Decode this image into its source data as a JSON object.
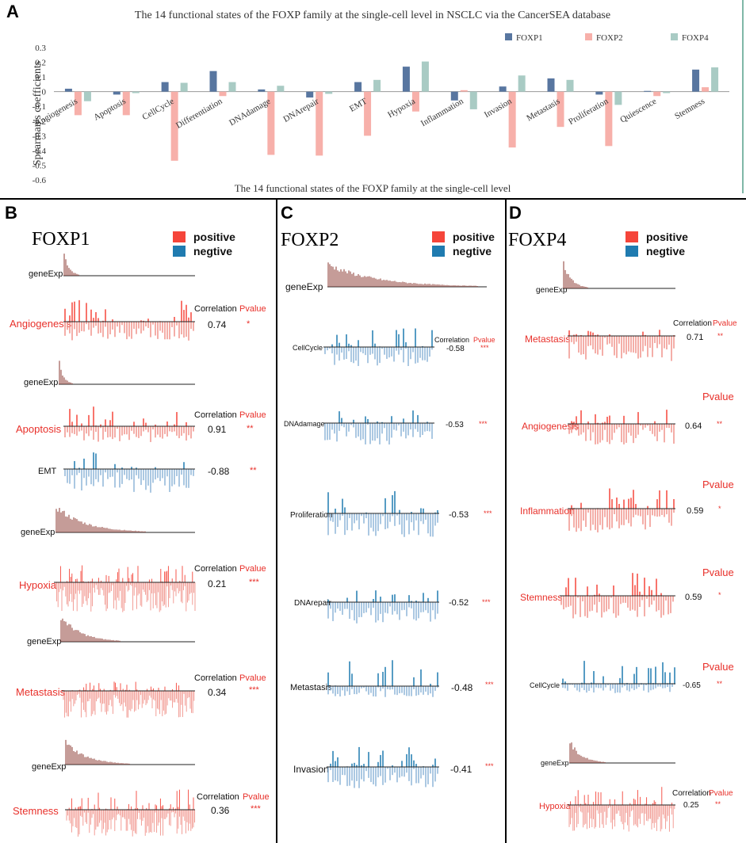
{
  "panels": {
    "a": "A",
    "b": "B",
    "c": "C",
    "d": "D"
  },
  "chart_data": {
    "type": "bar",
    "title": "The 14 functional states of the FOXP family at the single-cell level in NSCLC via the CancerSEA database",
    "xlabel": "The 14 functional states of the FOXP family at the single-cell level",
    "ylabel": "Spearman's coefficients",
    "ylim": [
      -0.6,
      0.3
    ],
    "yticks": [
      "0.3",
      "0.2",
      "0.1",
      "0",
      "-0.1",
      "-0.2",
      "-0.3",
      "-0.4",
      "-0.5",
      "-0.6"
    ],
    "legend_position": "top-right",
    "categories": [
      "Angiogenesis",
      "Apoptosis",
      "CellCycle",
      "Differentiation",
      "DNAdamage",
      "DNArepair",
      "EMT",
      "Hypoxia",
      "Inflammation",
      "Invasion",
      "Metastasis",
      "Proliferation",
      "Quiescence",
      "Stemness"
    ],
    "series": [
      {
        "name": "FOXP1",
        "color": "#5876a0",
        "values": [
          0.02,
          -0.02,
          0.065,
          0.14,
          0.015,
          -0.04,
          0.065,
          0.17,
          -0.06,
          0.035,
          0.09,
          -0.02,
          0.005,
          0.15
        ]
      },
      {
        "name": "FOXP2",
        "color": "#f7b0aa",
        "values": [
          -0.16,
          -0.16,
          -0.47,
          -0.03,
          -0.43,
          -0.435,
          -0.3,
          -0.135,
          0.01,
          -0.38,
          -0.24,
          -0.37,
          -0.03,
          0.03
        ]
      },
      {
        "name": "FOXP4",
        "color": "#a9cbc4",
        "values": [
          -0.065,
          -0.01,
          0.06,
          0.065,
          0.04,
          -0.015,
          0.08,
          0.205,
          -0.12,
          0.11,
          0.08,
          -0.09,
          -0.01,
          0.165
        ]
      }
    ]
  },
  "common": {
    "legend_positive": "positive",
    "legend_negative": "negtive",
    "positive_color": "#f5453a",
    "negative_color": "#1f7bb0",
    "correlation_header": "Correlation",
    "pvalue_header": "Pvalue",
    "geneexp_label": "geneExp"
  },
  "foxp1": {
    "title": "FOXP1",
    "rows": [
      {
        "state": "Angiogenesis",
        "correlation": "0.74",
        "pvalue": "*"
      },
      {
        "state": "Apoptosis",
        "correlation": "0.91",
        "pvalue": "**"
      },
      {
        "state": "EMT",
        "correlation": "-0.88",
        "pvalue": "**"
      },
      {
        "state": "Hypoxia",
        "correlation": "0.21",
        "pvalue": "***"
      },
      {
        "state": "Metastasis",
        "correlation": "0.34",
        "pvalue": "***"
      },
      {
        "state": "Stemness",
        "correlation": "0.36",
        "pvalue": "***"
      }
    ]
  },
  "foxp2": {
    "title": "FOXP2",
    "rows": [
      {
        "state": "CellCycle",
        "correlation": "-0.58",
        "pvalue": "***"
      },
      {
        "state": "DNAdamage",
        "correlation": "-0.53",
        "pvalue": "***"
      },
      {
        "state": "Proliferation",
        "correlation": "-0.53",
        "pvalue": "***"
      },
      {
        "state": "DNArepair",
        "correlation": "-0.52",
        "pvalue": "***"
      },
      {
        "state": "Metastasis",
        "correlation": "-0.48",
        "pvalue": "***"
      },
      {
        "state": "Invasion",
        "correlation": "-0.41",
        "pvalue": "***"
      }
    ]
  },
  "foxp4": {
    "title": "FOXP4",
    "rows": [
      {
        "state": "Metastasis",
        "correlation": "0.71",
        "pvalue": "**"
      },
      {
        "state": "Angiogenesis",
        "correlation": "0.64",
        "pvalue": "**"
      },
      {
        "state": "Inflammation",
        "correlation": "0.59",
        "pvalue": "*"
      },
      {
        "state": "Stemness",
        "correlation": "0.59",
        "pvalue": "*"
      },
      {
        "state": "CellCycle",
        "correlation": "-0.65",
        "pvalue": "**"
      },
      {
        "state": "Hypoxia",
        "correlation": "0.25",
        "pvalue": "**"
      }
    ]
  }
}
